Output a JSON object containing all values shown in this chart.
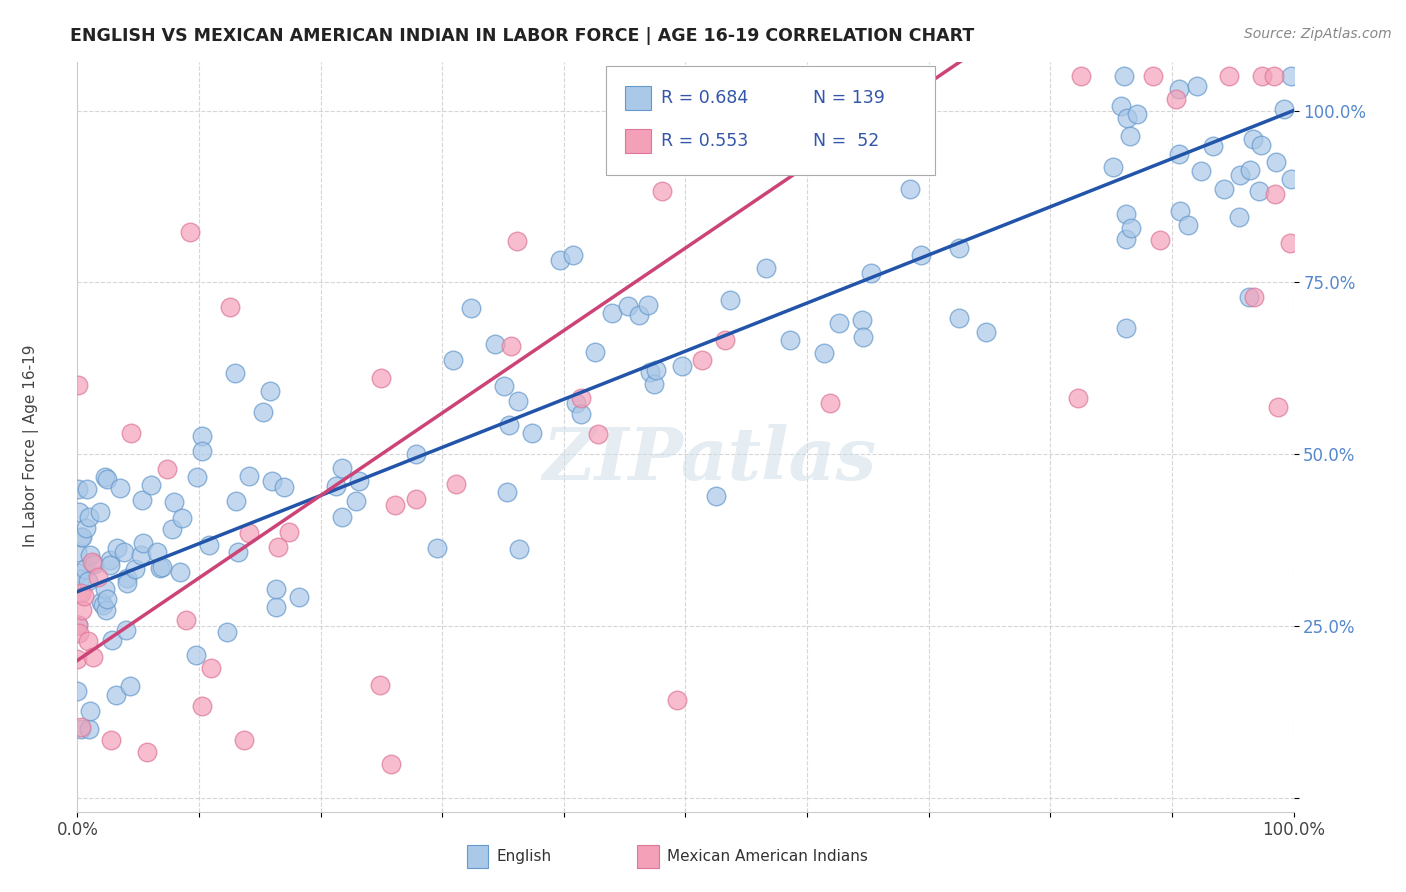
{
  "title": "ENGLISH VS MEXICAN AMERICAN INDIAN IN LABOR FORCE | AGE 16-19 CORRELATION CHART",
  "source": "Source: ZipAtlas.com",
  "ylabel": "In Labor Force | Age 16-19",
  "xlim": [
    0.0,
    1.0
  ],
  "ylim": [
    0.0,
    1.05
  ],
  "english_R": 0.684,
  "english_N": 139,
  "mexican_R": 0.553,
  "mexican_N": 52,
  "english_color": "#aac8e8",
  "english_edge_color": "#6699cc",
  "english_line_color": "#2255aa",
  "mexican_color": "#f4a0b8",
  "mexican_edge_color": "#dd7799",
  "mexican_line_color": "#cc4477",
  "legend_color_R": "#3355aa",
  "watermark": "ZIPatlas",
  "background_color": "#ffffff",
  "grid_color": "#cccccc",
  "ytick_color": "#5588cc"
}
